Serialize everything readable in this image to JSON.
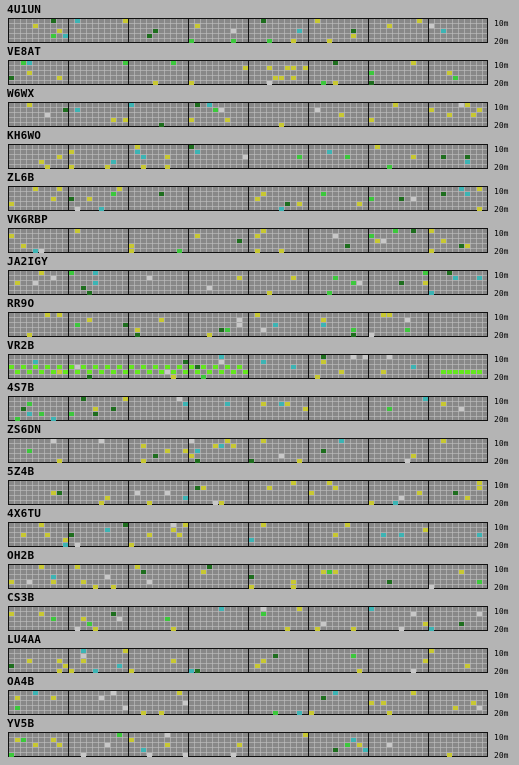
{
  "band_labels": {
    "top": "10m",
    "bottom": "20m"
  },
  "colors": {
    "yellow": "#c8c832",
    "cyan": "#3cb4b4",
    "green": "#3cc83c",
    "lime": "#64e61e",
    "gray": "#c8c8c8",
    "dark": "#1e6e1e"
  },
  "stations": [
    {
      "call": "4U1UN"
    },
    {
      "call": "VE8AT"
    },
    {
      "call": "W6WX"
    },
    {
      "call": "KH6WO"
    },
    {
      "call": "ZL6B"
    },
    {
      "call": "VK6RBP"
    },
    {
      "call": "JA2IGY"
    },
    {
      "call": "RR9O"
    },
    {
      "call": "VR2B"
    },
    {
      "call": "4S7B"
    },
    {
      "call": "ZS6DN"
    },
    {
      "call": "5Z4B"
    },
    {
      "call": "4X6TU"
    },
    {
      "call": "OH2B"
    },
    {
      "call": "CS3B"
    },
    {
      "call": "LU4AA"
    },
    {
      "call": "OA4B"
    },
    {
      "call": "YV5B"
    }
  ]
}
